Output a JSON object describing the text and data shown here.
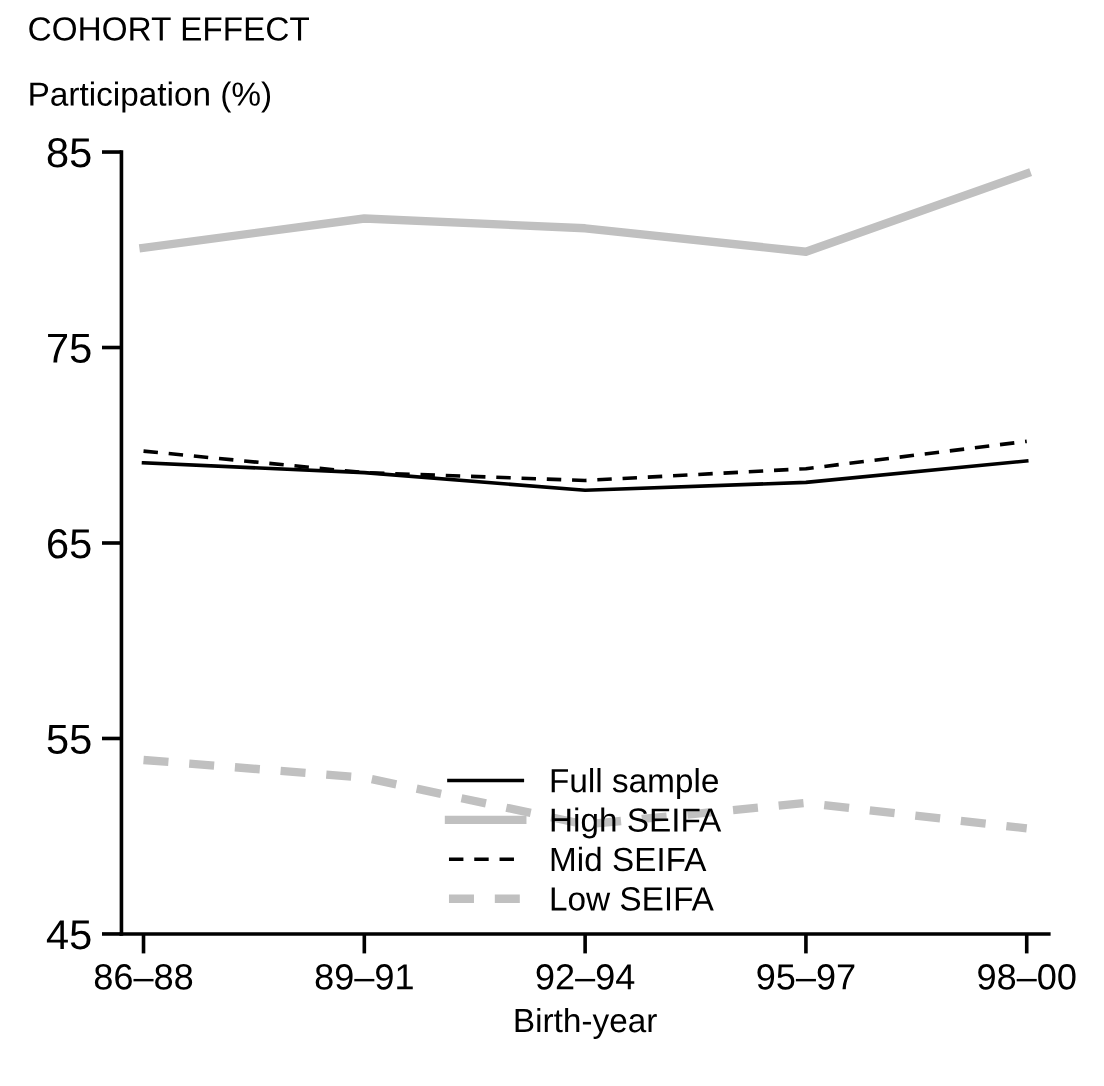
{
  "chart_data": {
    "type": "line",
    "title": "COHORT EFFECT",
    "ylabel": "Participation (%)",
    "xlabel": "Birth-year",
    "categories": [
      "86–88",
      "89–91",
      "92–94",
      "95–97",
      "98–00"
    ],
    "series": [
      {
        "name": "Full sample",
        "color": "#000000",
        "line_style": "solid",
        "values": [
          69.1,
          68.6,
          67.7,
          68.1,
          69.2
        ]
      },
      {
        "name": "High SEIFA",
        "color": "#c0c0c0",
        "line_style": "solid",
        "values": [
          80.1,
          81.6,
          81.1,
          79.9,
          83.9
        ]
      },
      {
        "name": "Mid SEIFA",
        "color": "#000000",
        "line_style": "dashed",
        "values": [
          69.7,
          68.6,
          68.2,
          68.8,
          70.2
        ]
      },
      {
        "name": "Low SEIFA",
        "color": "#c0c0c0",
        "line_style": "dashed",
        "values": [
          53.9,
          53.0,
          50.6,
          51.7,
          50.4
        ]
      }
    ],
    "ylim": [
      45,
      85
    ],
    "yticks": [
      45,
      55,
      65,
      75,
      85
    ],
    "grid": false,
    "legend": "bottom",
    "marker": "none"
  }
}
